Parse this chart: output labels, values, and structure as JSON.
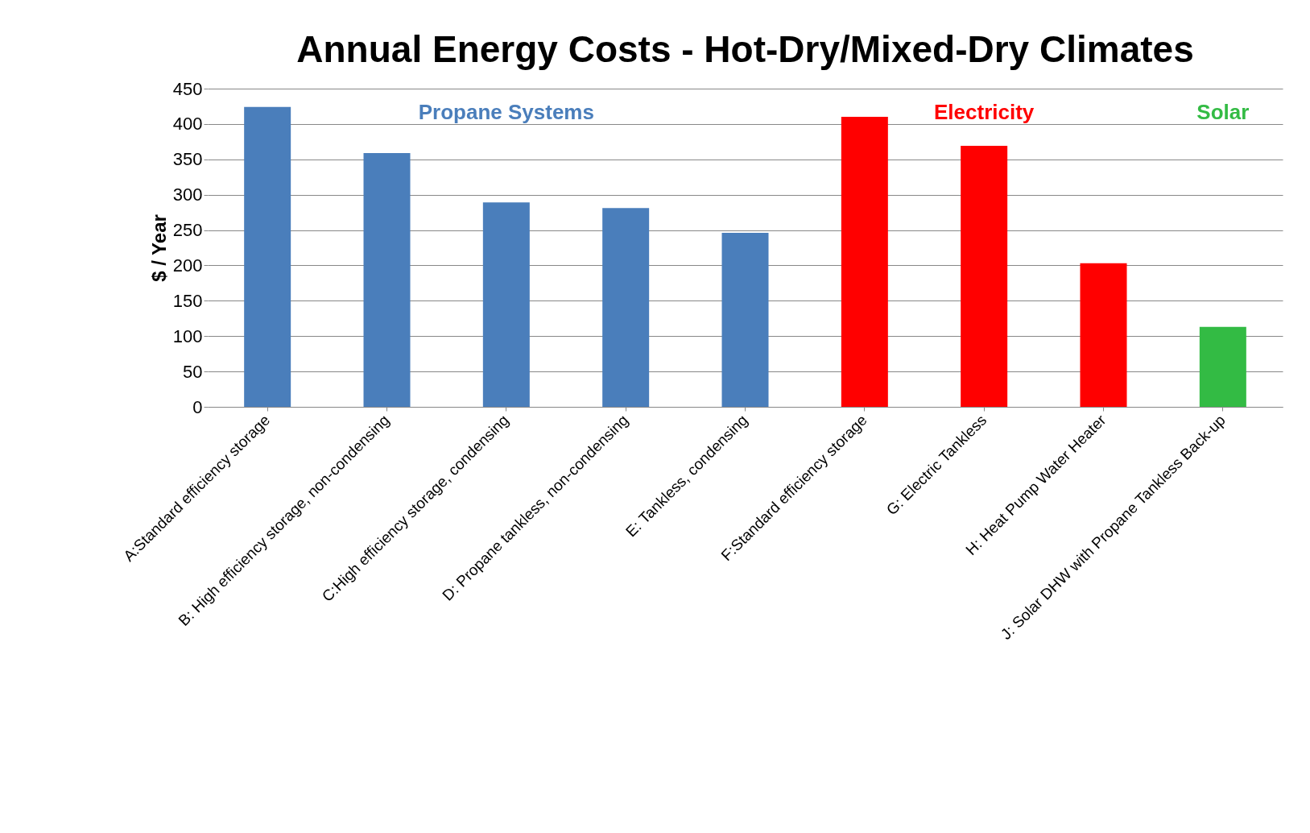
{
  "chart_data": {
    "type": "bar",
    "title": "Annual Energy Costs - Hot-Dry/Mixed-Dry Climates",
    "ylabel": "$ / Year",
    "categories": [
      "A:Standard efficiency storage",
      "B: High efficiency storage, non-condensing",
      "C:High efficiency storage, condensing",
      "D: Propane tankless, non-condensing",
      "E: Tankless, condensing",
      "F:Standard efficiency storage",
      "G: Electric Tankless",
      "H: Heat Pump Water Heater",
      "J: Solar DHW with Propane Tankless Back-up"
    ],
    "series": [
      {
        "name": "Propane Systems",
        "color": "#4a7ebb",
        "values": [
          424,
          359,
          289,
          281,
          246,
          null,
          null,
          null,
          null
        ]
      },
      {
        "name": "Electricity",
        "color": "#ff0000",
        "values": [
          null,
          null,
          null,
          null,
          null,
          410,
          369,
          203,
          null
        ]
      },
      {
        "name": "Solar",
        "color": "#33bb44",
        "values": [
          null,
          null,
          null,
          null,
          null,
          null,
          null,
          null,
          113
        ]
      }
    ],
    "ylim": [
      0,
      450
    ],
    "yticks": [
      0,
      50,
      100,
      150,
      200,
      250,
      300,
      350,
      400,
      450
    ],
    "grid": "y"
  }
}
